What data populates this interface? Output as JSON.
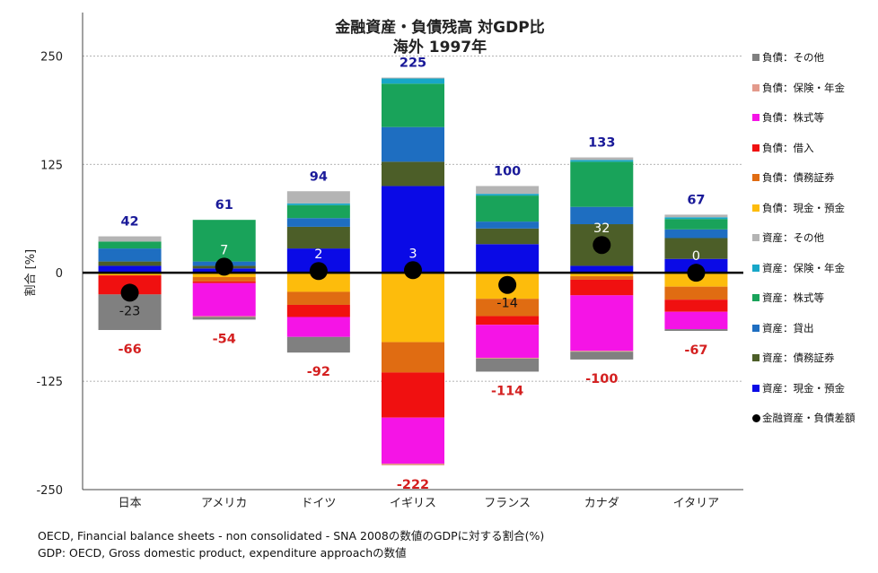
{
  "title_line1": "金融資産・負債残高 対GDP比",
  "title_line2": "海外 1997年",
  "notes": {
    "line1": "OECD, Financial balance sheets -  non consolidated - SNA 2008の数値のGDPに対する割合(%)",
    "line2": "GDP: OECD, Gross domestic product, expenditure approachの数値"
  },
  "chart_data": {
    "type": "bar",
    "stacked": true,
    "ylabel": "割合 [%]",
    "ylim": [
      -250,
      300
    ],
    "yticks": [
      250,
      125,
      0,
      -125,
      -250
    ],
    "categories": [
      "日本",
      "アメリカ",
      "ドイツ",
      "イギリス",
      "フランス",
      "カナダ",
      "イタリア"
    ],
    "asset_series": [
      {
        "name": "資産：現金・預金",
        "color": "#0a0ae6",
        "values": [
          8,
          5,
          28,
          100,
          33,
          8,
          16
        ]
      },
      {
        "name": "資産：債務証券",
        "color": "#4c5e28",
        "values": [
          5,
          3,
          25,
          28,
          18,
          48,
          24
        ]
      },
      {
        "name": "資産：貸出",
        "color": "#1e6ec1",
        "values": [
          15,
          5,
          10,
          40,
          8,
          20,
          10
        ]
      },
      {
        "name": "資産：株式等",
        "color": "#19a35a",
        "values": [
          8,
          48,
          15,
          50,
          30,
          52,
          12
        ]
      },
      {
        "name": "資産：保険・年金",
        "color": "#18a7c8",
        "values": [
          0,
          0,
          2,
          6,
          2,
          2,
          2
        ]
      },
      {
        "name": "資産：その他",
        "color": "#b4b4b4",
        "values": [
          6,
          0,
          14,
          1,
          9,
          3,
          3
        ]
      }
    ],
    "liability_series": [
      {
        "name": "負債：現金・預金",
        "color": "#fdbc0c",
        "values": [
          -3,
          -5,
          -22,
          -80,
          -30,
          -4,
          -16
        ]
      },
      {
        "name": "負債：債務証券",
        "color": "#e06c12",
        "values": [
          0,
          -5,
          -15,
          -35,
          -20,
          -4,
          -15
        ]
      },
      {
        "name": "負債：借入",
        "color": "#f01010",
        "values": [
          -22,
          -2,
          -14,
          -52,
          -10,
          -18,
          -14
        ]
      },
      {
        "name": "負債：株式等",
        "color": "#f514e6",
        "values": [
          0,
          -38,
          -23,
          -53,
          -38,
          -64,
          -20
        ]
      },
      {
        "name": "負債：保険・年金",
        "color": "#e39a8c",
        "values": [
          0,
          -1,
          0,
          -2,
          -1,
          -1,
          0
        ]
      },
      {
        "name": "負債：その他",
        "color": "#808080",
        "values": [
          -41,
          -3,
          -18,
          0,
          -15,
          -9,
          -2
        ]
      }
    ],
    "asset_totals": [
      42,
      61,
      94,
      225,
      100,
      133,
      67
    ],
    "liability_totals": [
      -66,
      -54,
      -92,
      -222,
      -114,
      -100,
      -67
    ],
    "net": {
      "name": "金融資産・負債差額",
      "values": [
        -23,
        7,
        2,
        3,
        -14,
        32,
        0
      ]
    },
    "asset_label_color": "#1a1a99",
    "liability_label_color": "#d42020"
  }
}
